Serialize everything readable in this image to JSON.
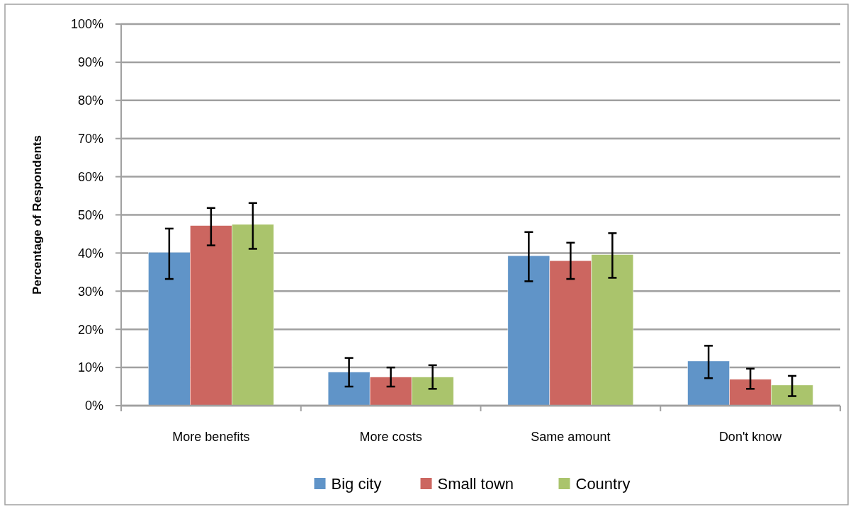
{
  "chart_data": {
    "type": "bar",
    "ylabel": "Percentage of Respondents",
    "categories": [
      "More benefits",
      "More costs",
      "Same amount",
      "Don't know"
    ],
    "series": [
      {
        "name": "Big city",
        "color": "#6094c8",
        "values": [
          40.2,
          8.8,
          39.3,
          11.7
        ],
        "errors": [
          [
            33.2,
            46.4
          ],
          [
            5.0,
            12.5
          ],
          [
            32.6,
            45.5
          ],
          [
            7.2,
            15.7
          ]
        ]
      },
      {
        "name": "Small town",
        "color": "#cc6660",
        "values": [
          47.2,
          7.5,
          38.0,
          6.9
        ],
        "errors": [
          [
            42.0,
            51.8
          ],
          [
            5.0,
            10.0
          ],
          [
            33.2,
            42.7
          ],
          [
            4.4,
            9.7
          ]
        ]
      },
      {
        "name": "Country",
        "color": "#aac46c",
        "values": [
          47.5,
          7.5,
          39.6,
          5.4
        ],
        "errors": [
          [
            41.1,
            53.1
          ],
          [
            4.4,
            10.6
          ],
          [
            33.5,
            45.2
          ],
          [
            2.5,
            7.8
          ]
        ]
      }
    ],
    "ylim": [
      0,
      100
    ],
    "yticks": [
      {
        "value": 0,
        "label": "0%"
      },
      {
        "value": 10,
        "label": "10%"
      },
      {
        "value": 20,
        "label": "20%"
      },
      {
        "value": 30,
        "label": "30%"
      },
      {
        "value": 40,
        "label": "40%"
      },
      {
        "value": 50,
        "label": "50%"
      },
      {
        "value": 60,
        "label": "60%"
      },
      {
        "value": 70,
        "label": "70%"
      },
      {
        "value": 80,
        "label": "80%"
      },
      {
        "value": 90,
        "label": "90%"
      },
      {
        "value": 100,
        "label": "100%"
      }
    ],
    "grid": "y",
    "legend": "bottom"
  }
}
